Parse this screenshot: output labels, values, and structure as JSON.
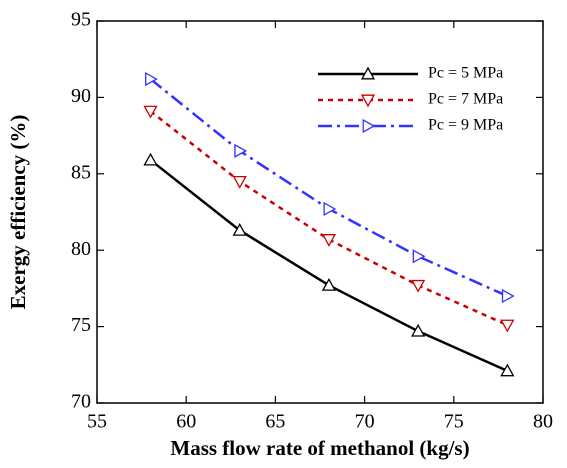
{
  "chart_data": {
    "type": "line",
    "x_label": "Mass flow rate of methanol (kg/s)",
    "y_label": "Exergy efficiency (%)",
    "x": [
      58,
      63,
      68,
      73,
      78
    ],
    "series": [
      {
        "name": "Pc = 5 MPa",
        "color": "#000000",
        "dash": "none",
        "marker": "triangle-up",
        "values": [
          85.9,
          81.3,
          77.7,
          74.7,
          72.1
        ]
      },
      {
        "name": "Pc = 7 MPa",
        "color": "#cc0000",
        "dash": "5,5",
        "marker": "triangle-down",
        "values": [
          89.1,
          84.5,
          80.7,
          77.7,
          75.1
        ]
      },
      {
        "name": "Pc = 9 MPa",
        "color": "#3333ff",
        "dash": "14,5,3,5",
        "marker": "triangle-right",
        "values": [
          91.2,
          86.5,
          82.7,
          79.6,
          77.0
        ]
      }
    ],
    "xlim": [
      55,
      80
    ],
    "xticks": [
      55,
      60,
      65,
      70,
      75,
      80
    ],
    "ylim": [
      70,
      95
    ],
    "yticks": [
      70,
      75,
      80,
      85,
      90,
      95
    ],
    "legend": "upper right",
    "grid": false
  }
}
